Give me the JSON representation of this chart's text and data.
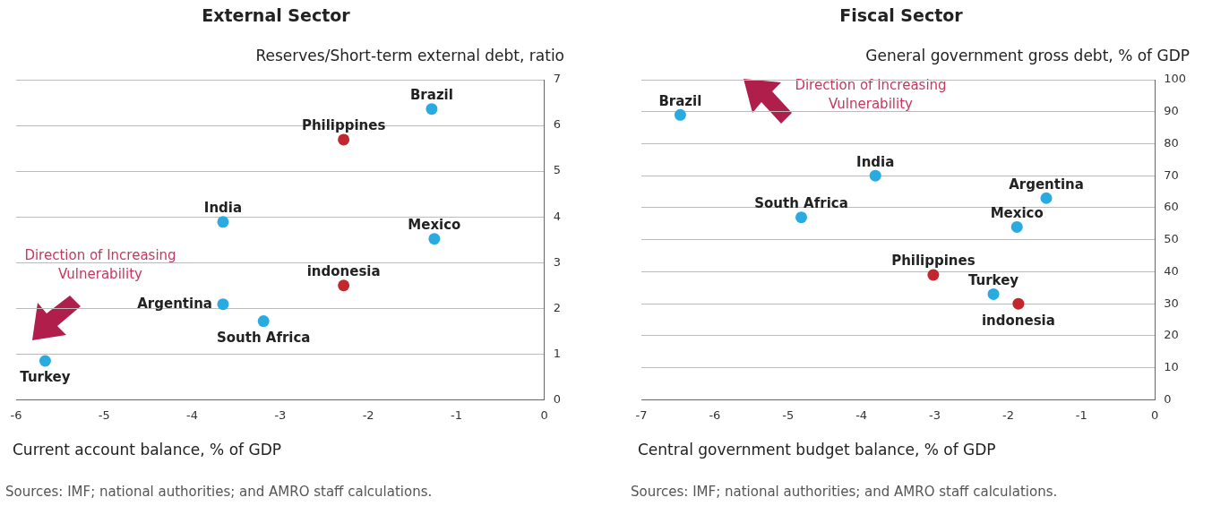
{
  "chart_data": [
    {
      "type": "scatter",
      "title": "External Sector",
      "xlabel": "Current account balance, % of GDP",
      "ylabel": "Reserves/Short-term external debt, ratio",
      "annotations": [
        "Direction of Increasing Vulnerability",
        "Sources: IMF; national authorities; and AMRO staff calculations."
      ],
      "xlim": [
        -6,
        0
      ],
      "xticks": [
        -6,
        -5,
        -4,
        -3,
        -2,
        -1,
        0
      ],
      "ylim": [
        0,
        7
      ],
      "yticks": [
        0,
        1,
        2,
        3,
        4,
        5,
        6,
        7
      ],
      "grid": "y",
      "marker": "circle",
      "series": [
        {
          "name": "Brazil",
          "color": "#29abe2",
          "x": [
            -1.28
          ],
          "values": [
            6.36
          ]
        },
        {
          "name": "Philippines",
          "color": "#c1272d",
          "x": [
            -2.28
          ],
          "values": [
            5.69
          ]
        },
        {
          "name": "India",
          "color": "#29abe2",
          "x": [
            -3.65
          ],
          "values": [
            3.89
          ]
        },
        {
          "name": "Mexico",
          "color": "#29abe2",
          "x": [
            -1.25
          ],
          "values": [
            3.52
          ]
        },
        {
          "name": "indonesia",
          "color": "#c1272d",
          "x": [
            -2.28
          ],
          "values": [
            2.5
          ]
        },
        {
          "name": "Argentina",
          "color": "#29abe2",
          "x": [
            -3.65
          ],
          "values": [
            2.09
          ]
        },
        {
          "name": "South Africa",
          "color": "#29abe2",
          "x": [
            -3.19
          ],
          "values": [
            1.72
          ]
        },
        {
          "name": "Turkey",
          "color": "#29abe2",
          "x": [
            -5.67
          ],
          "values": [
            0.85
          ]
        }
      ]
    },
    {
      "type": "scatter",
      "title": "Fiscal Sector",
      "xlabel": "Central government budget balance, % of GDP",
      "ylabel": "General government gross debt, % of GDP",
      "annotations": [
        "Direction of Increasing Vulnerability",
        "Sources: IMF; national authorities; and AMRO staff calculations."
      ],
      "xlim": [
        -7,
        0
      ],
      "xticks": [
        -7,
        -6,
        -5,
        -4,
        -3,
        -2,
        -1,
        0
      ],
      "ylim": [
        0,
        100
      ],
      "yticks": [
        0,
        10,
        20,
        30,
        40,
        50,
        60,
        70,
        80,
        90,
        100
      ],
      "grid": "y",
      "marker": "circle",
      "series": [
        {
          "name": "Brazil",
          "color": "#29abe2",
          "x": [
            -6.47
          ],
          "values": [
            89
          ]
        },
        {
          "name": "India",
          "color": "#29abe2",
          "x": [
            -3.81
          ],
          "values": [
            70
          ]
        },
        {
          "name": "Argentina",
          "color": "#29abe2",
          "x": [
            -1.48
          ],
          "values": [
            63
          ]
        },
        {
          "name": "South Africa",
          "color": "#29abe2",
          "x": [
            -4.82
          ],
          "values": [
            57
          ]
        },
        {
          "name": "Mexico",
          "color": "#29abe2",
          "x": [
            -1.88
          ],
          "values": [
            54
          ]
        },
        {
          "name": "Philippines",
          "color": "#c1272d",
          "x": [
            -3.02
          ],
          "values": [
            39
          ]
        },
        {
          "name": "Turkey",
          "color": "#29abe2",
          "x": [
            -2.2
          ],
          "values": [
            33
          ]
        },
        {
          "name": "indonesia",
          "color": "#c1272d",
          "x": [
            -1.86
          ],
          "values": [
            30
          ]
        }
      ]
    }
  ]
}
